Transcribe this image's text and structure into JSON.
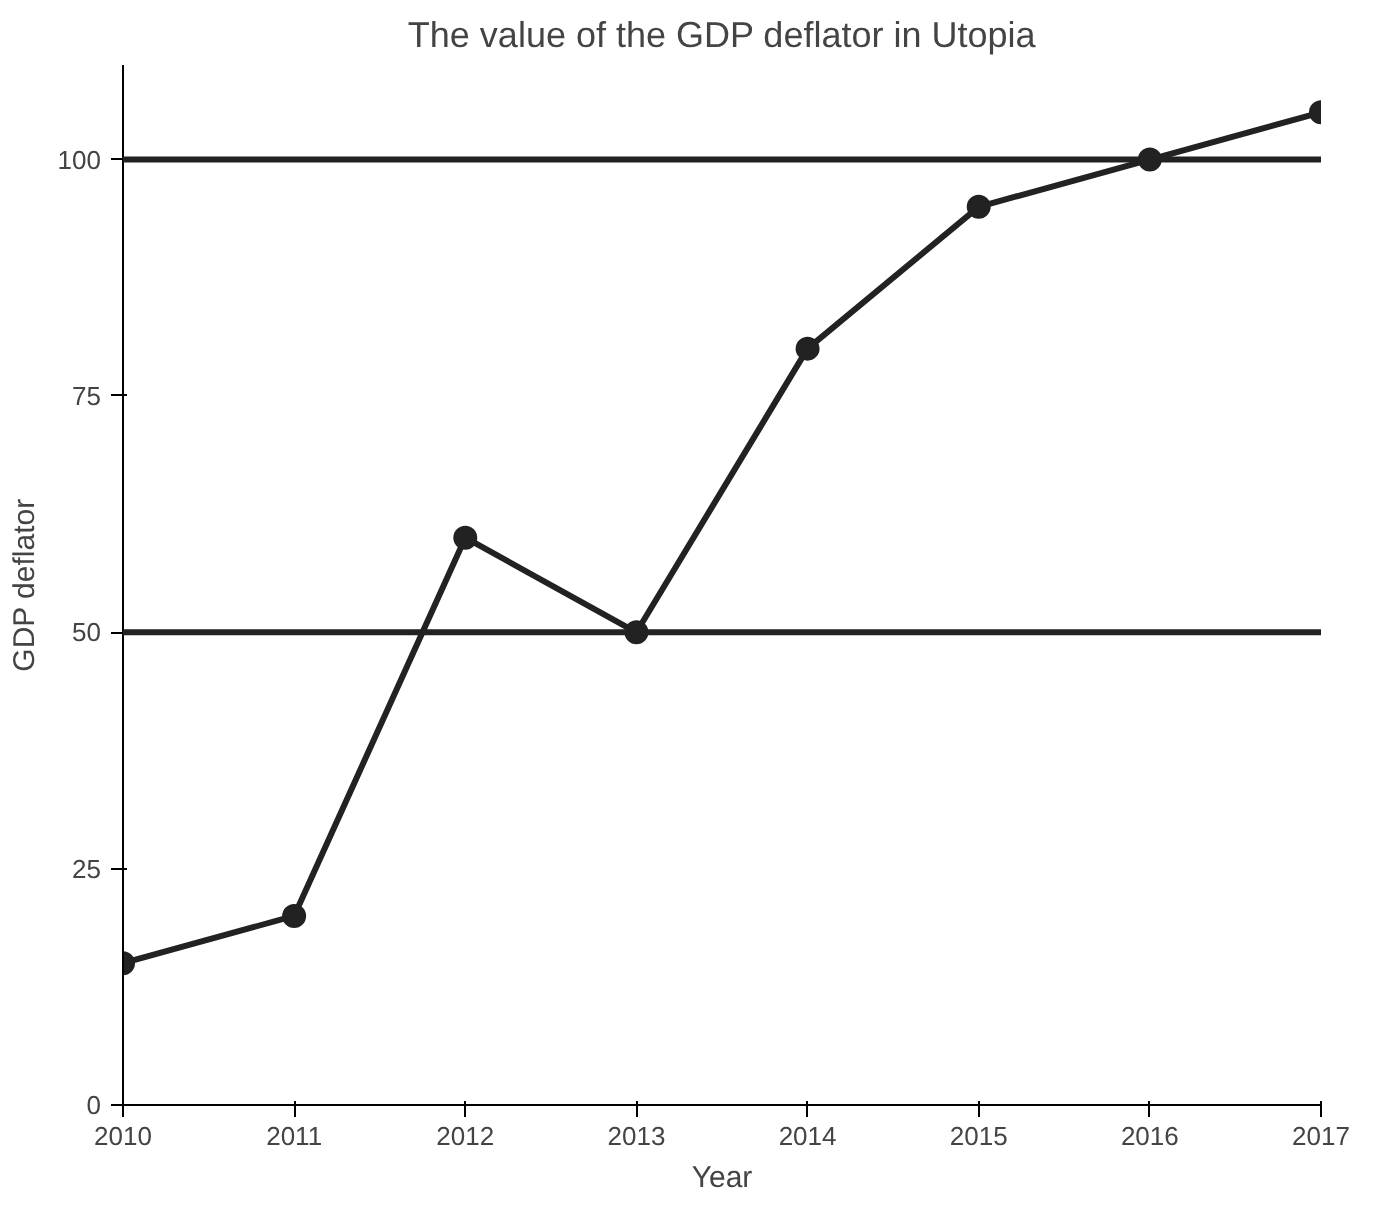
{
  "chart_data": {
    "type": "line",
    "title": "The value of the GDP deflator in Utopia",
    "xlabel": "Year",
    "ylabel": "GDP deflator",
    "x": [
      2010,
      2011,
      2012,
      2013,
      2014,
      2015,
      2016,
      2017
    ],
    "series": [
      {
        "color": "#222222",
        "values": [
          15,
          20,
          60,
          50,
          80,
          95,
          100,
          105
        ]
      }
    ],
    "xlim": [
      2010,
      2017
    ],
    "xticks": [
      2010,
      2011,
      2012,
      2013,
      2014,
      2015,
      2016,
      2017
    ],
    "ylim": [
      0,
      110
    ],
    "yticks": [
      0,
      25,
      50,
      75,
      100
    ],
    "ref_lines": [
      {
        "axis": "y",
        "value": 50,
        "color": "#222222"
      },
      {
        "axis": "y",
        "value": 100,
        "color": "#222222"
      }
    ],
    "marker": "circle",
    "line_style": "solid",
    "grid": false
  }
}
